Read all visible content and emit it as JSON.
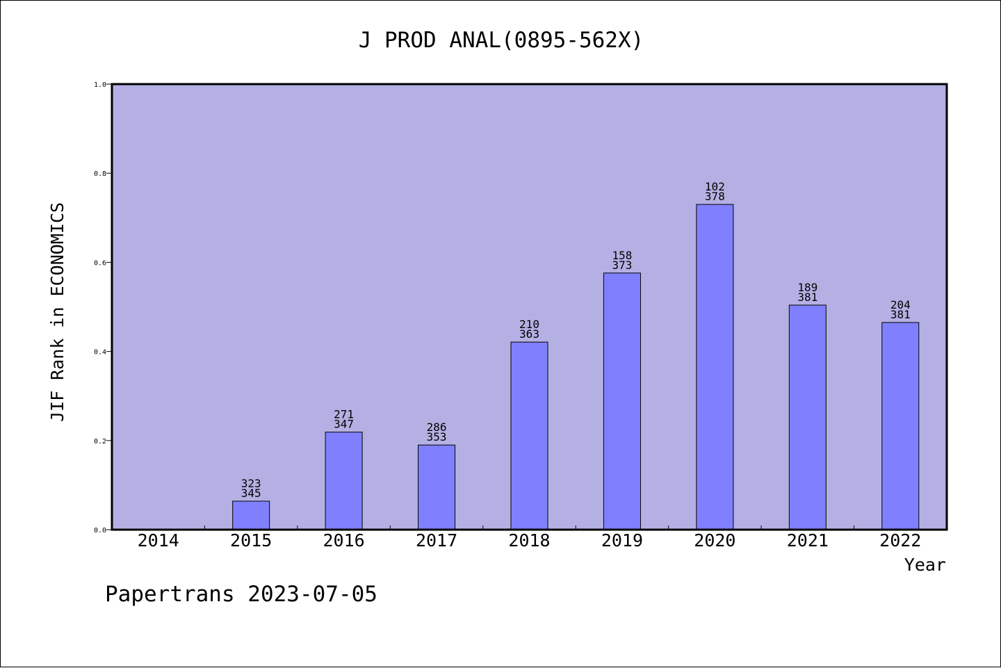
{
  "chart_data": {
    "type": "bar",
    "title": "J PROD ANAL(0895-562X)",
    "xlabel": "Year",
    "ylabel": "JIF Rank in ECONOMICS",
    "ylim": [
      0,
      1.0
    ],
    "yticks": [
      "0.0",
      "0.2",
      "0.4",
      "0.6",
      "0.8",
      "1.0"
    ],
    "categories": [
      "2014",
      "2015",
      "2016",
      "2017",
      "2018",
      "2019",
      "2020",
      "2021",
      "2022"
    ],
    "values": [
      null,
      0.064,
      0.219,
      0.19,
      0.421,
      0.576,
      0.73,
      0.504,
      0.465
    ],
    "labels": [
      null,
      [
        "323",
        "345"
      ],
      [
        "271",
        "347"
      ],
      [
        "286",
        "353"
      ],
      [
        "210",
        "363"
      ],
      [
        "158",
        "373"
      ],
      [
        "102",
        "378"
      ],
      [
        "189",
        "381"
      ],
      [
        "204",
        "381"
      ]
    ],
    "grid": false,
    "colors": {
      "plot_background": "#b5b0e3",
      "bar_fill": "#8080ff",
      "bar_stroke": "#000000"
    }
  },
  "footer": {
    "text": "Papertrans 2023-07-05"
  }
}
